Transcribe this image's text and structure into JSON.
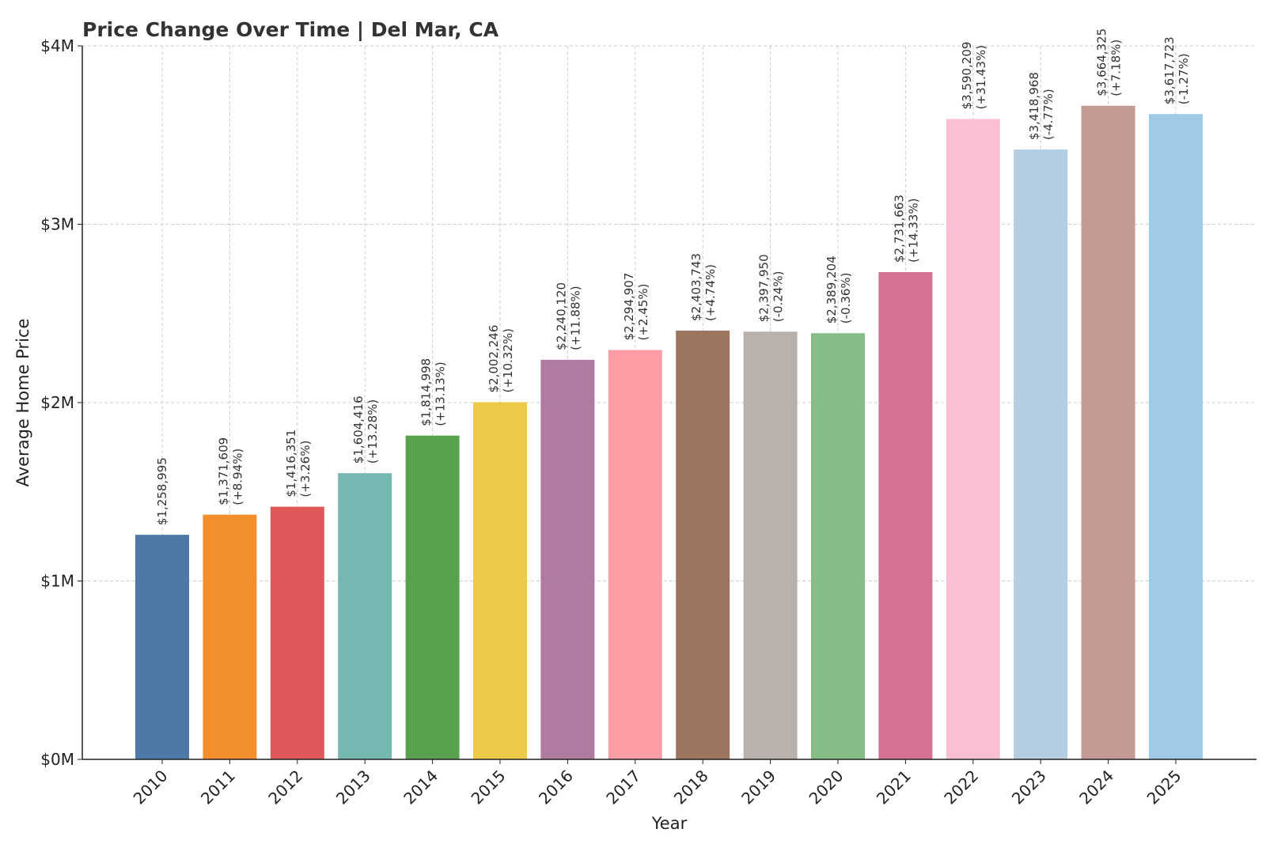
{
  "chart_data": {
    "type": "bar",
    "title": "Price Change Over Time | Del Mar, CA",
    "xlabel": "Year",
    "ylabel": "Average Home Price",
    "ylim": [
      0,
      4000000
    ],
    "yticks": [
      {
        "value": 0,
        "label": "$0M"
      },
      {
        "value": 1000000,
        "label": "$1M"
      },
      {
        "value": 2000000,
        "label": "$2M"
      },
      {
        "value": 3000000,
        "label": "$3M"
      },
      {
        "value": 4000000,
        "label": "$4M"
      }
    ],
    "grid": true,
    "categories": [
      "2010",
      "2011",
      "2012",
      "2013",
      "2014",
      "2015",
      "2016",
      "2017",
      "2018",
      "2019",
      "2020",
      "2021",
      "2022",
      "2023",
      "2024",
      "2025"
    ],
    "values": [
      1258995,
      1371609,
      1416351,
      1604416,
      1814998,
      2002246,
      2240120,
      2294907,
      2403743,
      2397950,
      2389204,
      2731663,
      3590209,
      3418968,
      3664325,
      3617723
    ],
    "value_labels": [
      "$1,258,995",
      "$1,371,609",
      "$1,416,351",
      "$1,604,416",
      "$1,814,998",
      "$2,002,246",
      "$2,240,120",
      "$2,294,907",
      "$2,403,743",
      "$2,397,950",
      "$2,389,204",
      "$2,731,663",
      "$3,590,209",
      "$3,418,968",
      "$3,664,325",
      "$3,617,723"
    ],
    "change_labels": [
      "",
      "(+8.94%)",
      "(+3.26%)",
      "(+13.28%)",
      "(+13.13%)",
      "(+10.32%)",
      "(+11.88%)",
      "(+2.45%)",
      "(+4.74%)",
      "(-0.24%)",
      "(-0.36%)",
      "(+14.33%)",
      "(+31.43%)",
      "(-4.77%)",
      "(+7.18%)",
      "(-1.27%)"
    ],
    "colors": [
      "#4e79a7",
      "#f28e2b",
      "#e15759",
      "#76b7b2",
      "#59a14f",
      "#edc948",
      "#b07aa1",
      "#ff9da7",
      "#9c755f",
      "#bab0ac",
      "#86bc86",
      "#d37295",
      "#fabfd2",
      "#b3cde3",
      "#c49a94",
      "#9fcbe8"
    ]
  }
}
